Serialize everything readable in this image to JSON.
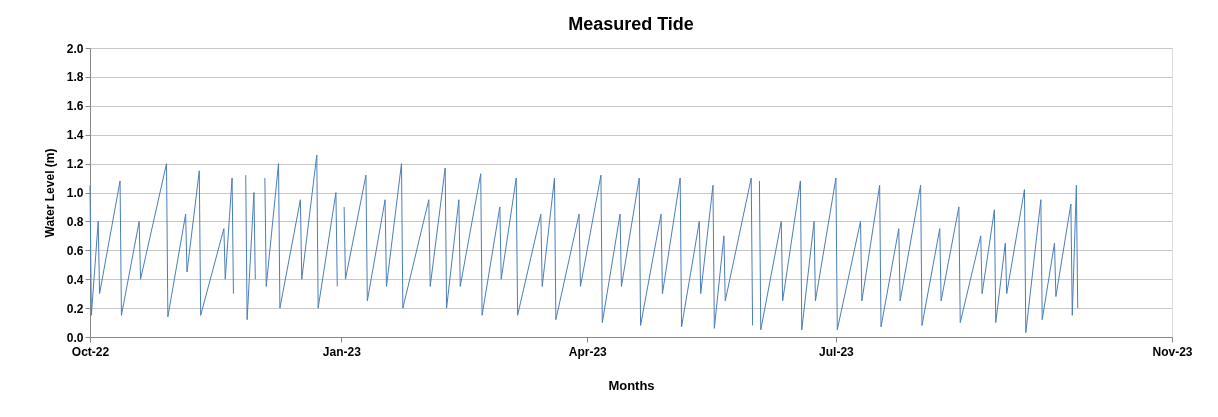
{
  "chart_data": {
    "type": "line",
    "title": "Measured Tide",
    "xlabel": "Months",
    "ylabel": "Water Level (m)",
    "x": [
      "2022-10-01T00:00",
      "2022-10-01T12:00",
      "2022-10-04T00:00",
      "2022-10-04T12:00",
      "2022-10-12T00:00",
      "2022-10-12T12:00",
      "2022-10-19T00:00",
      "2022-10-19T12:00",
      "2022-10-29T00:00",
      "2022-10-29T12:00",
      "2022-11-05T00:00",
      "2022-11-05T12:00",
      "2022-11-10T00:00",
      "2022-11-10T12:00",
      "2022-11-19T00:00",
      "2022-11-19T12:00",
      "2022-11-22T00:00",
      "2022-11-22T12:00",
      "2022-11-24T00:00",
      "2022-11-27T00:00",
      "2022-11-27T12:00",
      "2022-11-30T00:00",
      "2022-11-30T12:00",
      "2022-12-02T00:00",
      "2022-12-04T00:00",
      "2022-12-04T12:00",
      "2022-12-09T00:00",
      "2022-12-09T12:00",
      "2022-12-17T00:00",
      "2022-12-17T12:00",
      "2022-12-23T00:00",
      "2022-12-23T12:00",
      "2022-12-30T00:00",
      "2022-12-30T12:00",
      "2022-12-31T00:00",
      "2023-01-02T00:00",
      "2023-01-02T12:00",
      "2023-01-10T00:00",
      "2023-01-10T12:00",
      "2023-01-17T00:00",
      "2023-01-17T12:00",
      "2023-01-23T00:00",
      "2023-01-23T12:00",
      "2023-02-02T00:00",
      "2023-02-02T12:00",
      "2023-02-08T00:00",
      "2023-02-08T12:00",
      "2023-02-13T00:00",
      "2023-02-13T12:00",
      "2023-02-21T00:00",
      "2023-02-21T12:00",
      "2023-02-28T00:00",
      "2023-02-28T12:00",
      "2023-03-06T00:00",
      "2023-03-06T12:00",
      "2023-03-15T00:00",
      "2023-03-15T12:00",
      "2023-03-20T00:00",
      "2023-03-20T12:00",
      "2023-03-29T00:00",
      "2023-03-29T12:00",
      "2023-04-06T00:00",
      "2023-04-06T12:00",
      "2023-04-13T00:00",
      "2023-04-13T12:00",
      "2023-04-20T00:00",
      "2023-04-20T12:00",
      "2023-04-28T00:00",
      "2023-04-28T12:00",
      "2023-05-05T00:00",
      "2023-05-05T12:00",
      "2023-05-12T00:00",
      "2023-05-12T12:00",
      "2023-05-17T00:00",
      "2023-05-17T12:00",
      "2023-05-21T00:00",
      "2023-05-21T12:00",
      "2023-05-31T00:00",
      "2023-05-31T12:00",
      "2023-06-01T12:00",
      "2023-06-03T00:00",
      "2023-06-03T12:00",
      "2023-06-11T00:00",
      "2023-06-11T12:00",
      "2023-06-18T00:00",
      "2023-06-18T12:00",
      "2023-06-23T00:00",
      "2023-06-23T12:00",
      "2023-07-01T00:00",
      "2023-07-01T12:00",
      "2023-07-10T00:00",
      "2023-07-10T12:00",
      "2023-07-17T00:00",
      "2023-07-17T12:00",
      "2023-07-24T00:00",
      "2023-07-24T12:00",
      "2023-08-01T00:00",
      "2023-08-01T12:00",
      "2023-08-08T00:00",
      "2023-08-08T12:00",
      "2023-08-15T00:00",
      "2023-08-15T12:00",
      "2023-08-23T00:00",
      "2023-08-23T12:00",
      "2023-08-28T00:00",
      "2023-08-28T12:00",
      "2023-09-01T00:00",
      "2023-09-01T12:00",
      "2023-09-08T00:00",
      "2023-09-08T12:00",
      "2023-09-14T00:00",
      "2023-09-14T12:00",
      "2023-09-19T00:00",
      "2023-09-19T12:00",
      "2023-09-25T00:00",
      "2023-09-25T12:00",
      "2023-09-27T00:00",
      "2023-09-27T12:00"
    ],
    "series": [
      {
        "color": "#4a7ebb",
        "values": [
          1.05,
          0.15,
          0.8,
          0.3,
          1.08,
          0.15,
          0.8,
          0.4,
          1.2,
          0.14,
          0.85,
          0.45,
          1.15,
          0.15,
          0.75,
          0.4,
          1.1,
          0.3,
          null,
          1.12,
          0.12,
          1.0,
          0.4,
          null,
          1.1,
          0.35,
          1.2,
          0.2,
          0.95,
          0.4,
          1.26,
          0.2,
          1.0,
          0.35,
          null,
          0.9,
          0.4,
          1.12,
          0.25,
          0.95,
          0.35,
          1.2,
          0.2,
          0.95,
          0.35,
          1.17,
          0.2,
          0.95,
          0.35,
          1.13,
          0.15,
          0.9,
          0.4,
          1.1,
          0.15,
          0.85,
          0.35,
          1.1,
          0.12,
          0.85,
          0.35,
          1.12,
          0.1,
          0.85,
          0.35,
          1.1,
          0.08,
          0.85,
          0.3,
          1.1,
          0.07,
          0.8,
          0.3,
          1.05,
          0.06,
          0.7,
          0.25,
          1.1,
          0.08,
          null,
          1.08,
          0.05,
          0.8,
          0.25,
          1.08,
          0.05,
          0.8,
          0.25,
          1.1,
          0.05,
          0.8,
          0.25,
          1.05,
          0.07,
          0.75,
          0.25,
          1.05,
          0.08,
          0.75,
          0.25,
          0.9,
          0.1,
          0.7,
          0.3,
          0.88,
          0.1,
          0.65,
          0.3,
          1.02,
          0.03,
          0.95,
          0.12,
          0.65,
          0.28,
          0.92,
          0.15,
          1.05,
          0.2
        ]
      }
    ],
    "xlim": [
      "2022-10-01",
      "2023-11-01"
    ],
    "xticks": [
      {
        "value": "2022-10-01",
        "label": "Oct-22"
      },
      {
        "value": "2023-01-01",
        "label": "Jan-23"
      },
      {
        "value": "2023-04-01",
        "label": "Apr-23"
      },
      {
        "value": "2023-07-01",
        "label": "Jul-23"
      },
      {
        "value": "2023-11-01",
        "label": "Nov-23"
      }
    ],
    "ylim": [
      0,
      2
    ],
    "yticks": [
      {
        "value": 0,
        "label": "0.0"
      },
      {
        "value": 0.2,
        "label": "0.2"
      },
      {
        "value": 0.4,
        "label": "0.4"
      },
      {
        "value": 0.6,
        "label": "0.6"
      },
      {
        "value": 0.8,
        "label": "0.8"
      },
      {
        "value": 1.0,
        "label": "1.0"
      },
      {
        "value": 1.2,
        "label": "1.2"
      },
      {
        "value": 1.4,
        "label": "1.4"
      },
      {
        "value": 1.6,
        "label": "1.6"
      },
      {
        "value": 1.8,
        "label": "1.8"
      },
      {
        "value": 2.0,
        "label": "2.0"
      }
    ],
    "grid": "y",
    "marker": "none",
    "line_style": "solid"
  }
}
